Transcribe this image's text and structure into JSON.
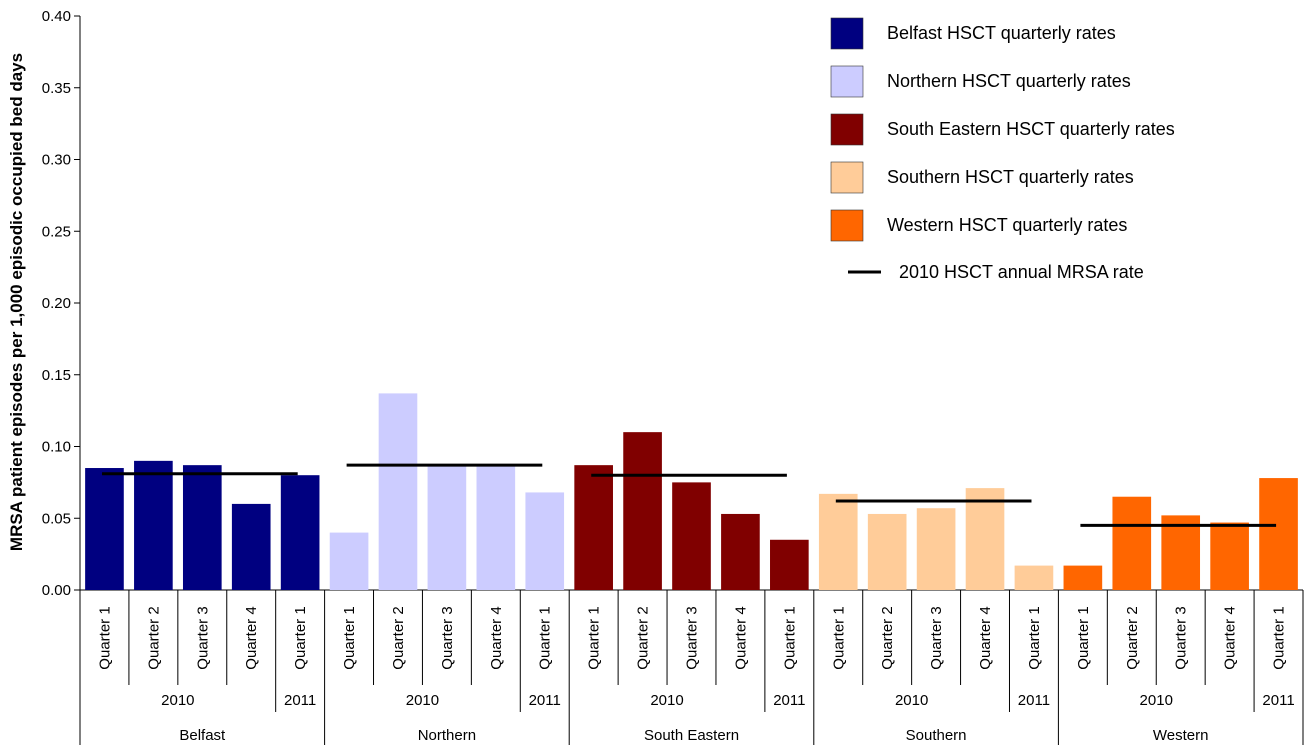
{
  "chart_data": {
    "type": "bar",
    "ylabel": "MRSA patient episodes per 1,000 episodic occupied bed days",
    "ylim": [
      0,
      0.4
    ],
    "yticks": [
      "0.00",
      "0.05",
      "0.10",
      "0.15",
      "0.20",
      "0.25",
      "0.30",
      "0.35",
      "0.40"
    ],
    "grid": false,
    "legend_position": "top-right",
    "groups": [
      {
        "name": "Belfast",
        "color": "#000080",
        "legend": "Belfast  HSCT quarterly rates",
        "annual_rate": 0.081,
        "years": [
          {
            "year": "2010",
            "quarters": [
              "Quarter 1",
              "Quarter 2",
              "Quarter 3",
              "Quarter 4"
            ],
            "values": [
              0.085,
              0.09,
              0.087,
              0.06
            ]
          },
          {
            "year": "2011",
            "quarters": [
              "Quarter 1"
            ],
            "values": [
              0.08
            ]
          }
        ]
      },
      {
        "name": "Northern",
        "color": "#CCCCFF",
        "legend": "Northern HSCT quarterly rates",
        "annual_rate": 0.087,
        "years": [
          {
            "year": "2010",
            "quarters": [
              "Quarter 1",
              "Quarter 2",
              "Quarter 3",
              "Quarter 4"
            ],
            "values": [
              0.04,
              0.137,
              0.087,
              0.087
            ]
          },
          {
            "year": "2011",
            "quarters": [
              "Quarter 1"
            ],
            "values": [
              0.068
            ]
          }
        ]
      },
      {
        "name": "South Eastern",
        "color": "#800000",
        "legend": "South Eastern HSCT quarterly rates",
        "annual_rate": 0.08,
        "years": [
          {
            "year": "2010",
            "quarters": [
              "Quarter 1",
              "Quarter 2",
              "Quarter 3",
              "Quarter 4"
            ],
            "values": [
              0.087,
              0.11,
              0.075,
              0.053
            ]
          },
          {
            "year": "2011",
            "quarters": [
              "Quarter 1"
            ],
            "values": [
              0.035
            ]
          }
        ]
      },
      {
        "name": "Southern",
        "color": "#FFCC99",
        "legend": "Southern HSCT quarterly rates",
        "annual_rate": 0.062,
        "years": [
          {
            "year": "2010",
            "quarters": [
              "Quarter 1",
              "Quarter 2",
              "Quarter 3",
              "Quarter 4"
            ],
            "values": [
              0.067,
              0.053,
              0.057,
              0.071
            ]
          },
          {
            "year": "2011",
            "quarters": [
              "Quarter 1"
            ],
            "values": [
              0.017
            ]
          }
        ]
      },
      {
        "name": "Western",
        "color": "#FF6600",
        "legend": "Western HSCT quarterly rates",
        "annual_rate": 0.045,
        "years": [
          {
            "year": "2010",
            "quarters": [
              "Quarter 1",
              "Quarter 2",
              "Quarter 3",
              "Quarter 4"
            ],
            "values": [
              0.017,
              0.065,
              0.052,
              0.047
            ]
          },
          {
            "year": "2011",
            "quarters": [
              "Quarter 1"
            ],
            "values": [
              0.078
            ]
          }
        ]
      }
    ],
    "line_legend": "2010 HSCT annual MRSA rate",
    "line_color": "#000000"
  }
}
